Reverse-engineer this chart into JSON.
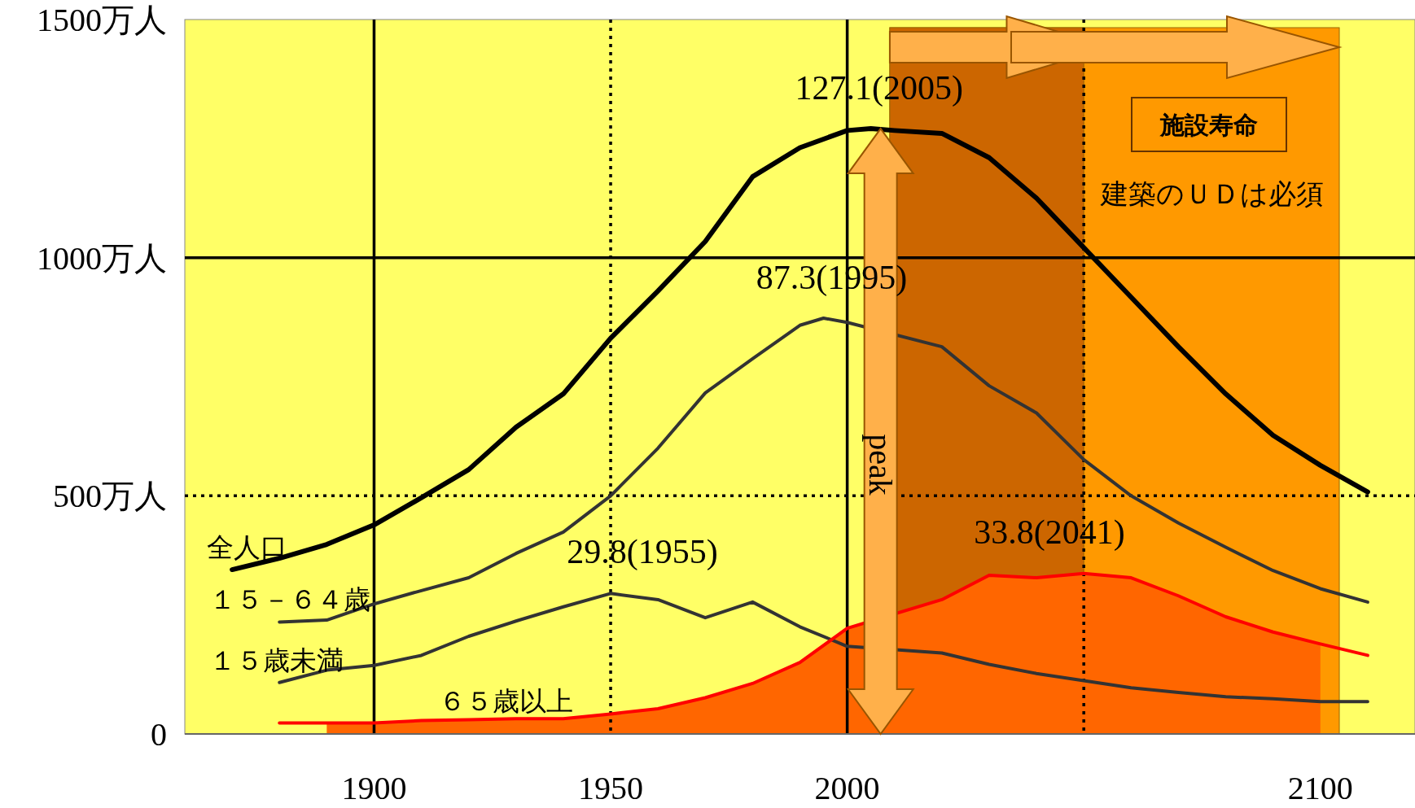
{
  "chart_data": {
    "type": "line",
    "xlim": [
      1860,
      2120
    ],
    "ylim": [
      0,
      1500
    ],
    "xticks": [
      1900,
      1950,
      2000,
      2100
    ],
    "yticks": [
      0,
      {
        "value": 500,
        "label": "500万人"
      },
      {
        "value": 1000,
        "label": "1000万人"
      },
      {
        "value": 1500,
        "label": "1500万人"
      }
    ],
    "bands": [
      {
        "axis": "x",
        "from": 2009,
        "to": 2104,
        "label": "施設寿命",
        "color": "#ff9900"
      },
      {
        "axis": "x",
        "from": 2009,
        "to": 2050,
        "label": null,
        "color": "#cc6600"
      }
    ],
    "ref_lines": [
      {
        "axis": "x",
        "value": 1900,
        "line_style": "solid"
      },
      {
        "axis": "x",
        "value": 1950,
        "line_style": "dotted"
      },
      {
        "axis": "x",
        "value": 2000,
        "line_style": "solid"
      },
      {
        "axis": "x",
        "value": 2050,
        "line_style": "dotted"
      },
      {
        "axis": "y",
        "value": 500,
        "line_style": "dotted"
      },
      {
        "axis": "y",
        "value": 1000,
        "line_style": "solid"
      }
    ],
    "series": [
      {
        "type": "area",
        "color": "#ff6600",
        "x": [
          1890,
          1900,
          1910,
          1920,
          1930,
          1940,
          1950,
          1960,
          1970,
          1980,
          1990,
          2000,
          2010,
          2020,
          2030,
          2040,
          2050,
          2060,
          2070,
          2080,
          2090,
          2100
        ],
        "values": [
          23,
          23,
          28,
          30,
          32,
          32,
          42,
          53,
          76,
          106,
          150,
          222,
          null,
          282,
          333,
          328,
          337,
          328,
          290,
          246,
          214,
          189
        ]
      },
      {
        "name": "全人口",
        "color": "#000000",
        "x": [
          1870,
          1880,
          1890,
          1900,
          1910,
          1920,
          1930,
          1940,
          1950,
          1960,
          1970,
          1980,
          1990,
          2000,
          2005,
          2010,
          2020,
          2030,
          2040,
          2050,
          2060,
          2070,
          2080,
          2090,
          2100,
          2110
        ],
        "values": [
          345,
          369,
          398,
          439,
          496,
          555,
          644,
          714,
          831,
          930,
          1034,
          1170,
          1231,
          1267,
          1271,
          1267,
          1261,
          1210,
          1125,
          1021,
          917,
          813,
          714,
          627,
          564,
          508
        ]
      },
      {
        "name": "１５－６４歳",
        "color": "#333333",
        "x": [
          1880,
          1890,
          1900,
          1910,
          1920,
          1930,
          1940,
          1950,
          1960,
          1970,
          1980,
          1990,
          1995,
          2000,
          2010,
          2020,
          2030,
          2040,
          2050,
          2060,
          2070,
          2080,
          2090,
          2100,
          2110
        ],
        "values": [
          235,
          239,
          273,
          301,
          328,
          379,
          424,
          500,
          600,
          716,
          788,
          858,
          873,
          864,
          null,
          813,
          731,
          674,
          576,
          500,
          443,
          392,
          343,
          305,
          277
        ]
      },
      {
        "name": "１５歳未満",
        "color": "#333333",
        "x": [
          1880,
          1890,
          1900,
          1910,
          1920,
          1930,
          1940,
          1950,
          1960,
          1970,
          1980,
          1990,
          2000,
          2010,
          2020,
          2030,
          2040,
          2050,
          2060,
          2070,
          2080,
          2090,
          2100,
          2110
        ],
        "values": [
          108,
          134,
          144,
          165,
          205,
          237,
          267,
          295,
          282,
          244,
          277,
          225,
          184,
          null,
          170,
          146,
          127,
          112,
          97,
          87,
          78,
          74,
          68,
          68
        ]
      },
      {
        "name": "６５歳以上",
        "color": "#ff0000",
        "x": [
          1880,
          1890,
          1900,
          1910,
          1920,
          1930,
          1940,
          1950,
          1960,
          1970,
          1980,
          1990,
          2000,
          2010,
          2020,
          2030,
          2040,
          2050,
          2060,
          2070,
          2080,
          2090,
          2100,
          2110
        ],
        "values": [
          23,
          23,
          23,
          28,
          30,
          32,
          32,
          42,
          53,
          76,
          106,
          150,
          222,
          null,
          282,
          333,
          328,
          337,
          328,
          290,
          246,
          214,
          189,
          165
        ]
      }
    ],
    "annotations": [
      {
        "text": "127.1(2005)",
        "x": 2005,
        "y": 1271
      },
      {
        "text": "87.3(1995)",
        "x": 1995,
        "y": 873
      },
      {
        "text": "29.8(1955)",
        "x": 1955,
        "y": 298
      },
      {
        "text": "33.8(2041)",
        "x": 2041,
        "y": 338
      },
      "建築のＵＤは必須",
      "peak"
    ]
  }
}
